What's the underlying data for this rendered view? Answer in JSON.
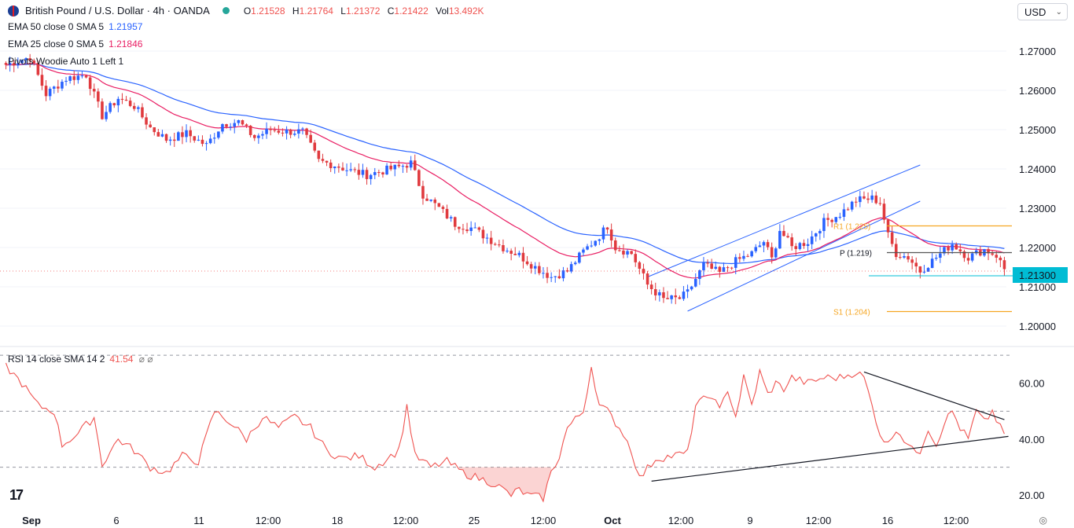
{
  "header": {
    "symbol_title": "British Pound / U.S. Dollar · 4h · OANDA",
    "ohlc": [
      {
        "label": "O",
        "value": "1.21528"
      },
      {
        "label": "H",
        "value": "1.21764"
      },
      {
        "label": "L",
        "value": "1.21372"
      },
      {
        "label": "C",
        "value": "1.21422"
      },
      {
        "label": "Vol",
        "value": "13.492K"
      }
    ],
    "currency": "USD"
  },
  "indicators": {
    "ema50": {
      "label": "EMA 50 close 0 SMA 5",
      "value": "1.21957",
      "color": "#2962ff"
    },
    "ema25": {
      "label": "EMA 25 close 0 SMA 5",
      "value": "1.21846",
      "color": "#e91e63"
    },
    "pivots": {
      "label": "Pivots Woodie Auto 1 Left 1"
    },
    "rsi": {
      "label": "RSI 14 close SMA 14 2",
      "value": "41.54",
      "color": "#ef5350"
    }
  },
  "colors": {
    "up": "#2962ff",
    "down": "#e03a3e",
    "channel": "#2962ff",
    "pivot_line": "#f5a623",
    "pivot_p_line": "#555555",
    "last_price": "#00bcd4",
    "grid": "#f0f3fa",
    "trendline": "#131722"
  },
  "chart_data": [
    {
      "type": "candlestick",
      "title": "British Pound / U.S. Dollar · 4h · OANDA",
      "ylim": [
        1.195,
        1.275
      ],
      "y_ticks": [
        "1.27000",
        "1.26000",
        "1.25000",
        "1.24000",
        "1.23000",
        "1.22000",
        "1.21000",
        "1.20000"
      ],
      "x_ticks": [
        "Sep",
        "6",
        "11",
        "12:00",
        "18",
        "12:00",
        "25",
        "12:00",
        "Oct",
        "12:00",
        "9",
        "12:00",
        "16",
        "12:00"
      ],
      "last_price": "1.21300",
      "pivot_levels": [
        {
          "label": "R1 (1.225)",
          "value": 1.2255
        },
        {
          "label": "P (1.219)",
          "value": 1.2187
        },
        {
          "label": "S1 (1.204)",
          "value": 1.2037
        }
      ],
      "anchors": [
        [
          0,
          1.2665
        ],
        [
          6,
          1.2685
        ],
        [
          10,
          1.259
        ],
        [
          15,
          1.263
        ],
        [
          20,
          1.264
        ],
        [
          24,
          1.2535
        ],
        [
          28,
          1.258
        ],
        [
          32,
          1.256
        ],
        [
          36,
          1.2505
        ],
        [
          40,
          1.2475
        ],
        [
          45,
          1.249
        ],
        [
          50,
          1.246
        ],
        [
          54,
          1.2515
        ],
        [
          58,
          1.252
        ],
        [
          62,
          1.248
        ],
        [
          66,
          1.25
        ],
        [
          70,
          1.2495
        ],
        [
          74,
          1.2495
        ],
        [
          78,
          1.242
        ],
        [
          82,
          1.241
        ],
        [
          86,
          1.2395
        ],
        [
          90,
          1.2385
        ],
        [
          94,
          1.2395
        ],
        [
          98,
          1.2405
        ],
        [
          101,
          1.2415
        ],
        [
          104,
          1.2335
        ],
        [
          108,
          1.23
        ],
        [
          112,
          1.226
        ],
        [
          116,
          1.225
        ],
        [
          120,
          1.2225
        ],
        [
          124,
          1.22
        ],
        [
          128,
          1.218
        ],
        [
          132,
          1.215
        ],
        [
          136,
          1.2125
        ],
        [
          140,
          1.214
        ],
        [
          144,
          1.219
        ],
        [
          148,
          1.223
        ],
        [
          150,
          1.2255
        ],
        [
          152,
          1.22
        ],
        [
          156,
          1.2185
        ],
        [
          160,
          1.2105
        ],
        [
          164,
          1.2068
        ],
        [
          168,
          1.207
        ],
        [
          170,
          1.2085
        ],
        [
          174,
          1.2155
        ],
        [
          178,
          1.2135
        ],
        [
          182,
          1.2165
        ],
        [
          186,
          1.2185
        ],
        [
          189,
          1.2215
        ],
        [
          191,
          1.217
        ],
        [
          193,
          1.2245
        ],
        [
          196,
          1.22
        ],
        [
          200,
          1.2215
        ],
        [
          204,
          1.2265
        ],
        [
          208,
          1.2285
        ],
        [
          212,
          1.232
        ],
        [
          216,
          1.2325
        ],
        [
          218,
          1.2315
        ],
        [
          220,
          1.223
        ],
        [
          222,
          1.2185
        ],
        [
          225,
          1.2175
        ],
        [
          228,
          1.214
        ],
        [
          232,
          1.2175
        ],
        [
          236,
          1.221
        ],
        [
          240,
          1.2175
        ],
        [
          244,
          1.2195
        ],
        [
          247,
          1.218
        ],
        [
          249,
          1.2145
        ]
      ],
      "candles_count": 250
    },
    {
      "type": "line",
      "title": "RSI 14 close SMA 14 2",
      "ylim": [
        15,
        72
      ],
      "y_ticks": [
        "60.00",
        "40.00",
        "20.00"
      ],
      "levels": [
        70,
        50,
        30
      ],
      "anchors": [
        [
          0,
          66
        ],
        [
          4,
          60
        ],
        [
          8,
          52
        ],
        [
          12,
          50
        ],
        [
          14,
          38
        ],
        [
          18,
          42
        ],
        [
          22,
          48
        ],
        [
          24,
          31
        ],
        [
          28,
          40
        ],
        [
          32,
          36
        ],
        [
          36,
          30
        ],
        [
          40,
          28
        ],
        [
          44,
          34
        ],
        [
          48,
          32
        ],
        [
          52,
          50
        ],
        [
          56,
          46
        ],
        [
          60,
          40
        ],
        [
          64,
          48
        ],
        [
          68,
          44
        ],
        [
          72,
          48
        ],
        [
          76,
          44
        ],
        [
          80,
          36
        ],
        [
          84,
          33
        ],
        [
          88,
          34
        ],
        [
          92,
          30
        ],
        [
          96,
          34
        ],
        [
          98,
          36
        ],
        [
          100,
          52
        ],
        [
          102,
          34
        ],
        [
          106,
          30
        ],
        [
          110,
          32
        ],
        [
          114,
          28
        ],
        [
          118,
          26
        ],
        [
          122,
          24
        ],
        [
          126,
          20
        ],
        [
          128,
          22
        ],
        [
          130,
          20
        ],
        [
          134,
          19
        ],
        [
          136,
          28
        ],
        [
          138,
          34
        ],
        [
          140,
          44
        ],
        [
          144,
          50
        ],
        [
          146,
          66
        ],
        [
          148,
          52
        ],
        [
          150,
          50
        ],
        [
          152,
          46
        ],
        [
          154,
          42
        ],
        [
          156,
          36
        ],
        [
          158,
          26
        ],
        [
          162,
          33
        ],
        [
          166,
          34
        ],
        [
          170,
          35
        ],
        [
          172,
          52
        ],
        [
          176,
          56
        ],
        [
          178,
          50
        ],
        [
          180,
          58
        ],
        [
          182,
          48
        ],
        [
          184,
          62
        ],
        [
          186,
          52
        ],
        [
          188,
          64
        ],
        [
          190,
          56
        ],
        [
          192,
          60
        ],
        [
          194,
          58
        ],
        [
          196,
          62
        ],
        [
          200,
          60
        ],
        [
          204,
          62
        ],
        [
          208,
          62
        ],
        [
          212,
          64
        ],
        [
          214,
          62
        ],
        [
          216,
          52
        ],
        [
          218,
          42
        ],
        [
          220,
          38
        ],
        [
          222,
          44
        ],
        [
          224,
          40
        ],
        [
          226,
          36
        ],
        [
          228,
          36
        ],
        [
          230,
          44
        ],
        [
          232,
          38
        ],
        [
          234,
          46
        ],
        [
          236,
          50
        ],
        [
          238,
          44
        ],
        [
          240,
          40
        ],
        [
          242,
          50
        ],
        [
          244,
          46
        ],
        [
          246,
          50
        ],
        [
          248,
          44
        ],
        [
          249,
          42
        ]
      ],
      "trendlines": [
        {
          "from": [
            214,
            64
          ],
          "to": [
            249,
            47
          ]
        },
        {
          "from": [
            161,
            25
          ],
          "to": [
            250,
            41
          ]
        }
      ]
    }
  ]
}
